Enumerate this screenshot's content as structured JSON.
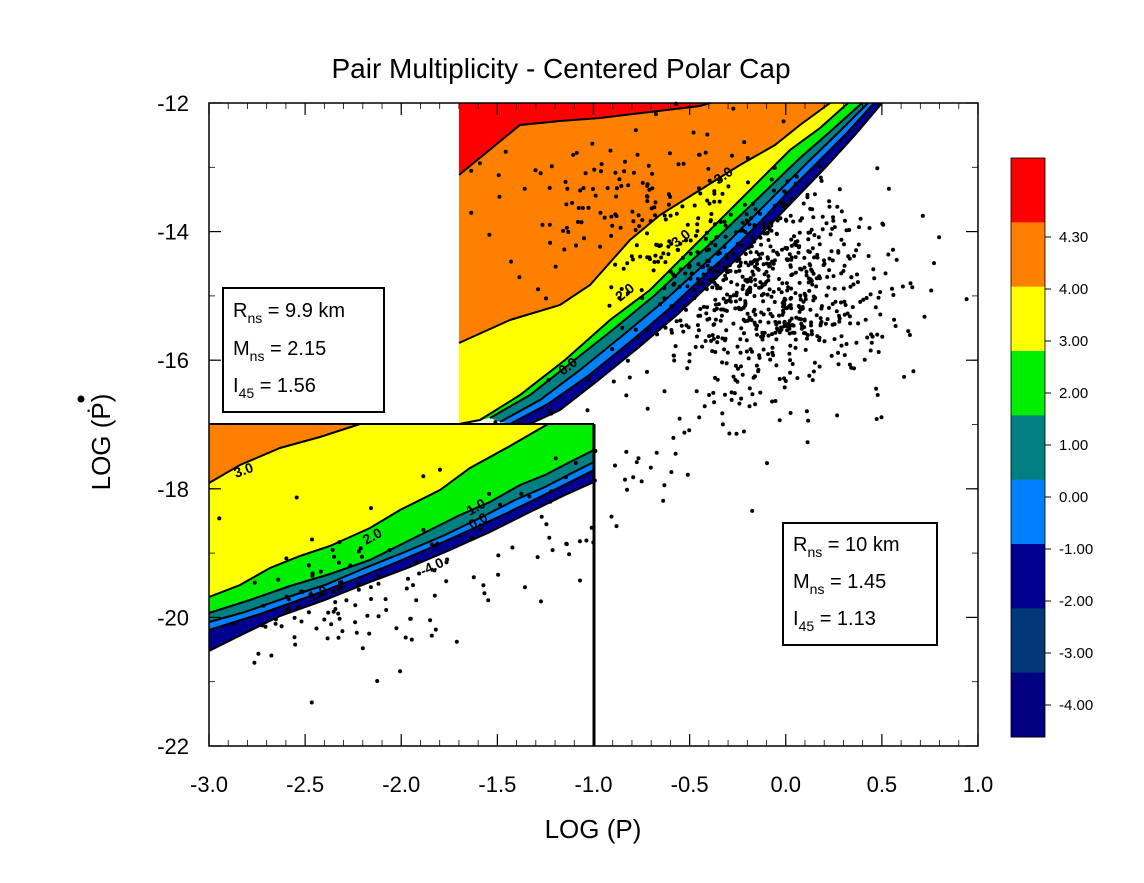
{
  "chart_data": {
    "type": "scatter",
    "title": "Pair Multiplicity - Centered Polar Cap",
    "xlabel": "LOG (P)",
    "ylabel": "LOG (Ṗ)",
    "xlim": [
      -3.0,
      1.0
    ],
    "ylim": [
      -22,
      -12
    ],
    "x_ticks": [
      -3.0,
      -2.5,
      -2.0,
      -1.5,
      -1.0,
      -0.5,
      0.0,
      0.5,
      1.0
    ],
    "x_tick_labels": [
      "-3.0",
      "-2.5",
      "-2.0",
      "-1.5",
      "-1.0",
      "-0.5",
      "0.0",
      "0.5",
      "1.0"
    ],
    "y_ticks": [
      -22,
      -20,
      -18,
      -16,
      -14,
      -12
    ],
    "y_tick_labels": [
      "-22",
      "-20",
      "-18",
      "-16",
      "-14",
      "-12"
    ],
    "colorbar": {
      "labels": [
        "4.30",
        "4.00",
        "3.00",
        "2.00",
        "1.00",
        "0.00",
        "-1.00",
        "-2.00",
        "-3.00",
        "-4.00"
      ],
      "colors": [
        "#ff0000",
        "#ff7f00",
        "#ffff00",
        "#00ee00",
        "#008080",
        "#0080ff",
        "#000090",
        "#003878",
        "#000080"
      ]
    },
    "legend_boxes": [
      {
        "r_label": "R",
        "r_sub": "ns",
        "r_value": " = 9.9 km",
        "m_label": "M",
        "m_sub": "ns",
        "m_value": " = 2.15",
        "i_label": "I",
        "i_sub": "45",
        "i_value": " = 1.56",
        "placement": "left"
      },
      {
        "r_label": "R",
        "r_sub": "ns",
        "r_value": " = 10 km",
        "m_label": "M",
        "m_sub": "ns",
        "m_value": " = 1.45",
        "i_label": "I",
        "i_sub": "45",
        "i_value": " = 1.13",
        "placement": "lower-right"
      }
    ],
    "contour_labels": [
      "3.0",
      "3.0",
      "2.0",
      "1.0",
      "0.0",
      "0.0",
      "1.0",
      "-4.0",
      "2.0",
      "3.0"
    ],
    "scatter_seed": 7,
    "scatter_clusters": [
      {
        "n": 780,
        "cx": -0.1,
        "cy": -14.9,
        "sx": 0.33,
        "sy": 0.85
      },
      {
        "n": 120,
        "cx": -0.85,
        "cy": -13.6,
        "sx": 0.35,
        "sy": 0.55
      },
      {
        "n": 95,
        "cx": -2.35,
        "cy": -19.8,
        "sx": 0.3,
        "sy": 0.55
      },
      {
        "n": 45,
        "cx": -1.5,
        "cy": -18.9,
        "sx": 0.28,
        "sy": 0.5
      },
      {
        "n": 35,
        "cx": -0.7,
        "cy": -17.2,
        "sx": 0.3,
        "sy": 0.6
      }
    ]
  }
}
